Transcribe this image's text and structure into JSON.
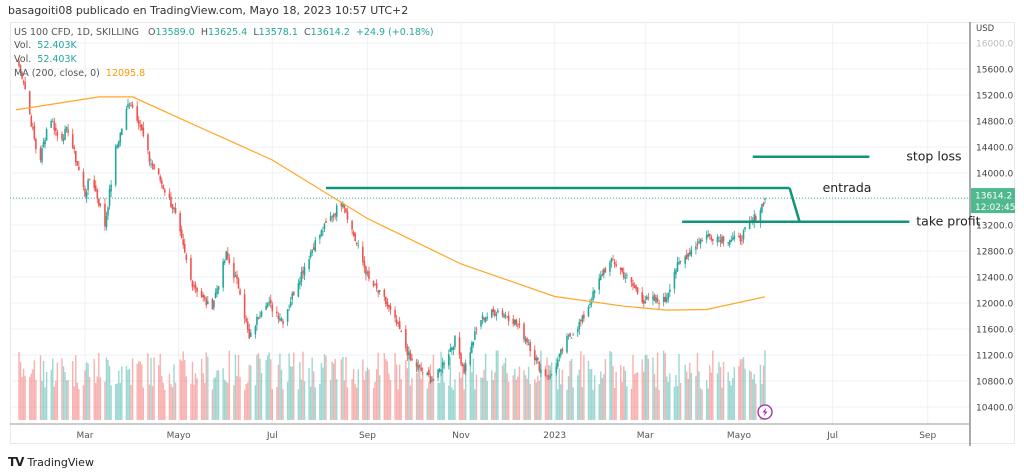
{
  "header": {
    "title": "basagoiti08 publicado en TradingView.com, Mayo 18, 2023 10:57 UTC+2"
  },
  "legend": {
    "symbol": "US 100 CFD, 1D, SKILLING",
    "open_label": "O",
    "open": "13589.0",
    "high_label": "H",
    "high": "13625.4",
    "low_label": "L",
    "low": "13578.1",
    "close_label": "C",
    "close": "13614.2",
    "change": "+24.9 (+0.18%)",
    "vol1_label": "Vol.",
    "vol1": "52.403K",
    "vol2_label": "Vol.",
    "vol2": "52.403K",
    "ma_label": "MA (200, close, 0)",
    "ma": "12095.8"
  },
  "price_tag": {
    "price": "13614.2",
    "countdown": "12:02:45"
  },
  "footer": {
    "brand": "TradingView",
    "logo": "TV"
  },
  "colors": {
    "up": "#26a69a",
    "down": "#ef5350",
    "ma": "#ffa726",
    "drawing": "#12937a",
    "price_tag": "#4fb98d",
    "alert": "#9c27b0"
  },
  "icons": {
    "alert": "lightning-icon"
  },
  "chart_data": {
    "type": "candlestick",
    "currency": "USD",
    "y_ticks": [
      10400,
      10800,
      11200,
      11600,
      12000,
      12400,
      12800,
      13200,
      13600,
      14000,
      14400,
      14800,
      15200,
      15600,
      16000
    ],
    "ylim": [
      10140,
      16320
    ],
    "x_ticks": [
      {
        "label": "Mar",
        "date": "2022-03-01"
      },
      {
        "label": "Mayo",
        "date": "2022-05-01"
      },
      {
        "label": "Jul",
        "date": "2022-07-01"
      },
      {
        "label": "Sep",
        "date": "2022-09-01"
      },
      {
        "label": "Nov",
        "date": "2022-11-01"
      },
      {
        "label": "2023",
        "date": "2023-01-01"
      },
      {
        "label": "Mar",
        "date": "2023-03-01"
      },
      {
        "label": "Mayo",
        "date": "2023-05-01"
      },
      {
        "label": "Jul",
        "date": "2023-07-01"
      },
      {
        "label": "Sep",
        "date": "2023-09-01"
      }
    ],
    "grid": true,
    "close_path": [
      [
        "2022-01-15",
        15800
      ],
      [
        "2022-01-20",
        15430
      ],
      [
        "2022-01-30",
        14120
      ],
      [
        "2022-02-06",
        14900
      ],
      [
        "2022-02-12",
        14510
      ],
      [
        "2022-02-18",
        14670
      ],
      [
        "2022-03-01",
        13670
      ],
      [
        "2022-03-05",
        13980
      ],
      [
        "2022-03-14",
        13200
      ],
      [
        "2022-03-21",
        14350
      ],
      [
        "2022-03-30",
        15120
      ],
      [
        "2022-04-05",
        14810
      ],
      [
        "2022-04-12",
        14200
      ],
      [
        "2022-04-19",
        13890
      ],
      [
        "2022-04-28",
        13430
      ],
      [
        "2022-05-09",
        12350
      ],
      [
        "2022-05-22",
        11890
      ],
      [
        "2022-06-01",
        12740
      ],
      [
        "2022-06-10",
        12200
      ],
      [
        "2022-06-16",
        11430
      ],
      [
        "2022-06-26",
        12050
      ],
      [
        "2022-07-08",
        11740
      ],
      [
        "2022-07-18",
        12350
      ],
      [
        "2022-07-28",
        12890
      ],
      [
        "2022-08-07",
        13280
      ],
      [
        "2022-08-16",
        13580
      ],
      [
        "2022-08-23",
        13040
      ],
      [
        "2022-09-02",
        12350
      ],
      [
        "2022-09-12",
        12040
      ],
      [
        "2022-09-22",
        11580
      ],
      [
        "2022-09-29",
        11120
      ],
      [
        "2022-10-09",
        10890
      ],
      [
        "2022-10-15",
        10800
      ],
      [
        "2022-10-21",
        11120
      ],
      [
        "2022-10-28",
        11430
      ],
      [
        "2022-11-03",
        10970
      ],
      [
        "2022-11-13",
        11740
      ],
      [
        "2022-11-25",
        11890
      ],
      [
        "2022-12-05",
        11740
      ],
      [
        "2022-12-14",
        11430
      ],
      [
        "2022-12-23",
        10970
      ],
      [
        "2022-12-29",
        10850
      ],
      [
        "2023-01-09",
        11430
      ],
      [
        "2023-01-19",
        11740
      ],
      [
        "2023-02-02",
        12500
      ],
      [
        "2023-02-08",
        12650
      ],
      [
        "2023-02-18",
        12350
      ],
      [
        "2023-02-28",
        12040
      ],
      [
        "2023-03-14",
        12040
      ],
      [
        "2023-03-20",
        12500
      ],
      [
        "2023-03-30",
        12800
      ],
      [
        "2023-04-09",
        13040
      ],
      [
        "2023-04-22",
        13000
      ],
      [
        "2023-05-01",
        12960
      ],
      [
        "2023-05-08",
        13200
      ],
      [
        "2023-05-14",
        13400
      ],
      [
        "2023-05-18",
        13614.2
      ]
    ],
    "ma_200": [
      [
        "2022-01-15",
        14970
      ],
      [
        "2022-03-10",
        15170
      ],
      [
        "2022-04-01",
        15170
      ],
      [
        "2022-05-15",
        14700
      ],
      [
        "2022-07-01",
        14200
      ],
      [
        "2022-09-01",
        13300
      ],
      [
        "2022-11-01",
        12600
      ],
      [
        "2023-01-01",
        12100
      ],
      [
        "2023-02-15",
        11950
      ],
      [
        "2023-03-15",
        11890
      ],
      [
        "2023-04-10",
        11900
      ],
      [
        "2023-05-18",
        12095.8
      ]
    ],
    "drawings": [
      {
        "label": "stop loss",
        "price": 14250,
        "from": "2023-05-10",
        "to": "2023-07-25"
      },
      {
        "label": "entrada",
        "price": 13770,
        "from": "2022-08-05",
        "to": "2023-06-03"
      },
      {
        "label": "take profit",
        "price": 13250,
        "from": "2023-03-25",
        "to": "2023-08-20"
      }
    ]
  }
}
